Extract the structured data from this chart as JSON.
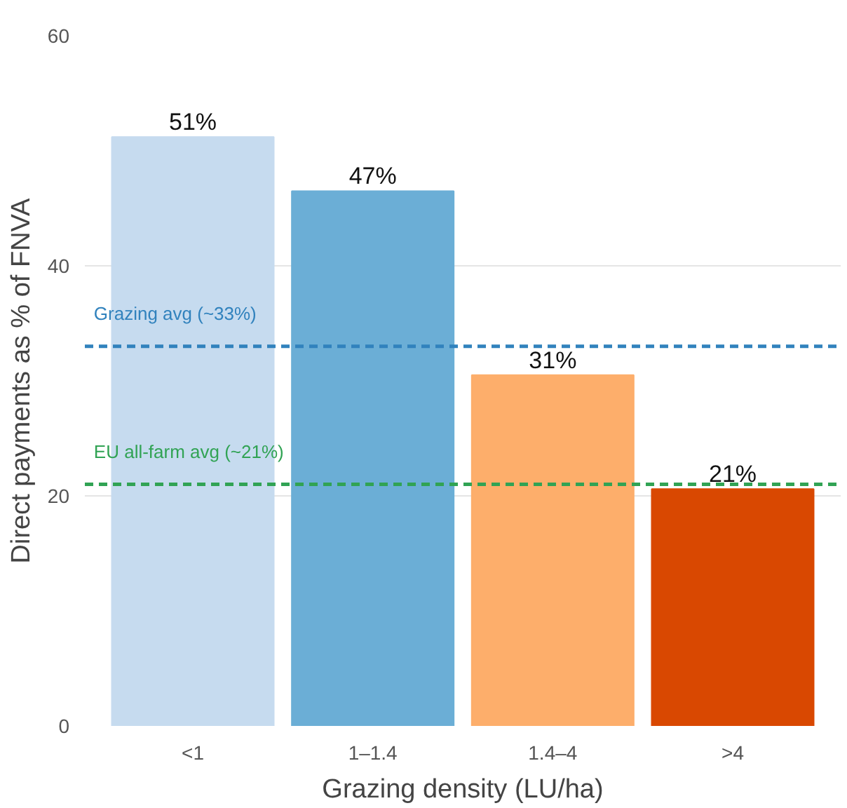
{
  "chart_data": {
    "type": "bar",
    "xlabel": "Grazing density (LU/ha)",
    "ylabel": "Direct payments as % of FNVA",
    "categories": [
      "<1",
      "1–1.4",
      "1.4–4",
      ">4"
    ],
    "values": [
      51.2,
      46.5,
      30.5,
      20.6
    ],
    "value_labels": [
      "51%",
      "47%",
      "31%",
      "21%"
    ],
    "colors": [
      "#c6dbef",
      "#6baed6",
      "#fdae6b",
      "#d94801"
    ],
    "ylim": [
      0,
      60
    ],
    "yticks": [
      0,
      20,
      40,
      60
    ],
    "grid": "y",
    "ref_lines": [
      {
        "axis": "y",
        "value": 33,
        "label": "Grazing avg (~33%)",
        "color": "#3182bd",
        "line_style": "dashed"
      },
      {
        "axis": "y",
        "value": 21,
        "label": "EU all-farm avg (~21%)",
        "color": "#31a354",
        "line_style": "dashed"
      }
    ]
  }
}
